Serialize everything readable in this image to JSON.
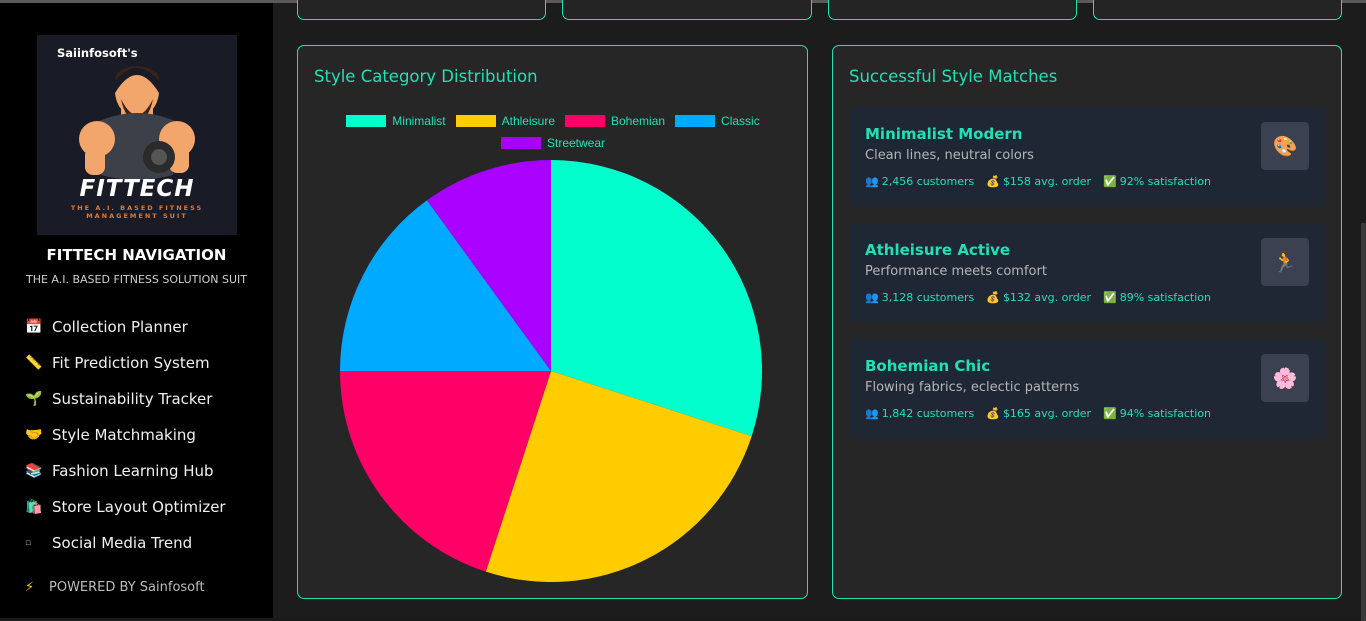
{
  "sidebar": {
    "logo": {
      "brand_top": "Saiinfosoft's",
      "wordmark": "FITTECH",
      "tagline": "THE A.I. BASED FITNESS MANAGEMENT SUIT"
    },
    "title": "FITTECH NAVIGATION",
    "subtitle": "THE A.I. BASED FITNESS SOLUTION SUIT",
    "items": [
      {
        "icon": "📅",
        "icon_name": "calendar-icon",
        "label": "Collection Planner"
      },
      {
        "icon": "📏",
        "icon_name": "ruler-icon",
        "label": "Fit Prediction System"
      },
      {
        "icon": "🌱",
        "icon_name": "seedling-icon",
        "label": "Sustainability Tracker"
      },
      {
        "icon": "🤝",
        "icon_name": "handshake-icon",
        "label": "Style Matchmaking"
      },
      {
        "icon": "📚",
        "icon_name": "books-icon",
        "label": "Fashion Learning Hub"
      },
      {
        "icon": "🛍️",
        "icon_name": "shopping-bags-icon",
        "label": "Store Layout Optimizer"
      },
      {
        "icon": "▫",
        "icon_name": "media-icon",
        "label": "Social Media Trend"
      }
    ],
    "powered": {
      "icon": "⚡",
      "label": "POWERED BY Sainfosoft"
    }
  },
  "distribution_panel": {
    "title": "Style Category Distribution"
  },
  "chart_data": {
    "type": "pie",
    "categories": [
      "Minimalist",
      "Athleisure",
      "Bohemian",
      "Classic",
      "Streetwear"
    ],
    "values": [
      30,
      25,
      20,
      15,
      10
    ],
    "colors": [
      "#00ffcc",
      "#ffcc00",
      "#ff0066",
      "#00aaff",
      "#aa00ff"
    ],
    "legend": "top"
  },
  "matches_panel": {
    "title": "Successful Style Matches",
    "items": [
      {
        "name": "Minimalist Modern",
        "desc": "Clean lines, neutral colors",
        "icon": "🎨",
        "icon_name": "palette-icon",
        "customers": "2,456 customers",
        "order": "$158 avg. order",
        "satisfaction": "92% satisfaction"
      },
      {
        "name": "Athleisure Active",
        "desc": "Performance meets comfort",
        "icon": "🏃",
        "icon_name": "runner-icon",
        "customers": "3,128 customers",
        "order": "$132 avg. order",
        "satisfaction": "89% satisfaction"
      },
      {
        "name": "Bohemian Chic",
        "desc": "Flowing fabrics, eclectic patterns",
        "icon": "🌸",
        "icon_name": "blossom-icon",
        "customers": "1,842 customers",
        "order": "$165 avg. order",
        "satisfaction": "94% satisfaction"
      }
    ],
    "stat_icons": {
      "customers": "👥",
      "order": "💰",
      "satisfaction": "✅"
    }
  }
}
